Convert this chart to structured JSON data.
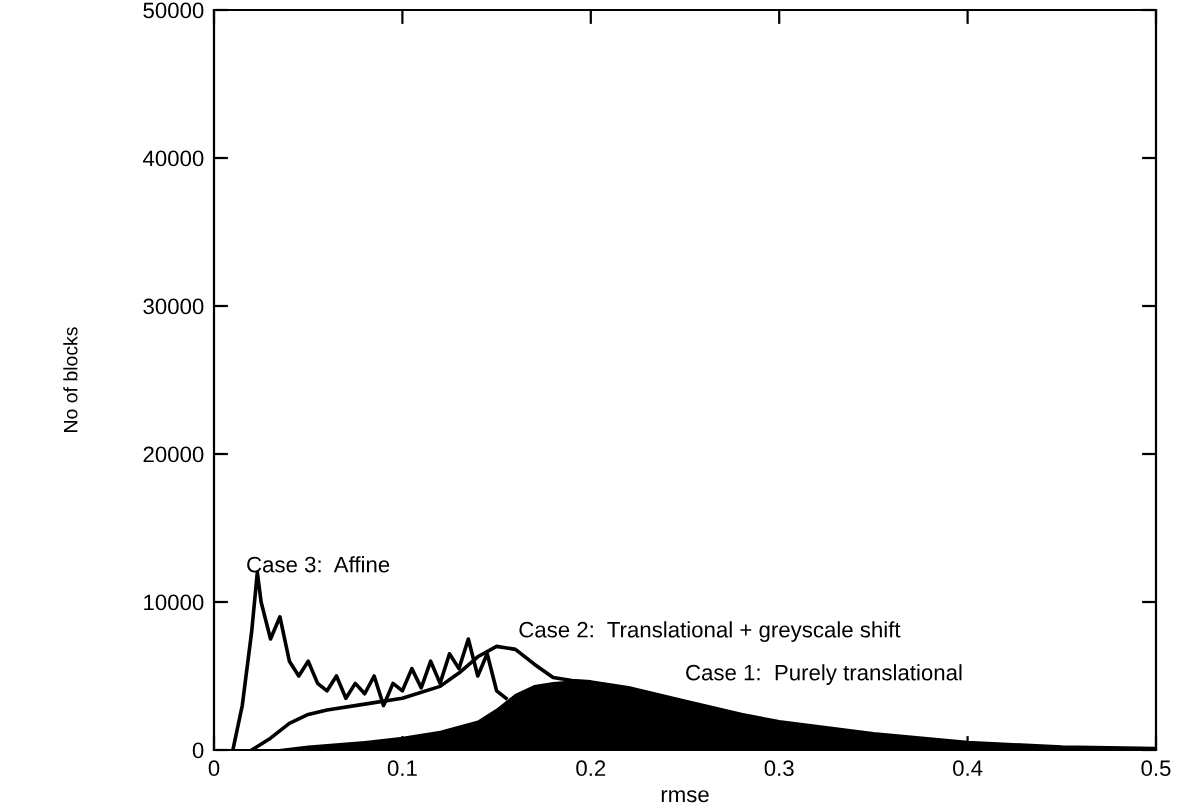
{
  "chart_data": {
    "type": "area",
    "xlabel": "rmse",
    "ylabel": "No of blocks",
    "xlim": [
      0,
      0.5
    ],
    "ylim": [
      0,
      50000
    ],
    "xticks": [
      0,
      0.1,
      0.2,
      0.3,
      0.4,
      0.5
    ],
    "yticks": [
      0,
      10000,
      20000,
      30000,
      40000,
      50000
    ],
    "grid": false,
    "legend": false,
    "series": [
      {
        "color": "#000000",
        "x": [
          0.03,
          0.05,
          0.08,
          0.1,
          0.12,
          0.14,
          0.15,
          0.16,
          0.17,
          0.18,
          0.19,
          0.2,
          0.22,
          0.25,
          0.28,
          0.3,
          0.35,
          0.4,
          0.45,
          0.5
        ],
        "values": [
          0,
          300,
          600,
          900,
          1300,
          2000,
          2800,
          3800,
          4400,
          4600,
          4700,
          4600,
          4200,
          3300,
          2400,
          1900,
          1100,
          500,
          200,
          100
        ]
      },
      {
        "type": "line",
        "color": "#000000",
        "x": [
          0.02,
          0.03,
          0.04,
          0.05,
          0.06,
          0.08,
          0.1,
          0.12,
          0.13,
          0.14,
          0.15,
          0.16,
          0.17,
          0.18,
          0.19,
          0.2,
          0.22,
          0.25,
          0.28,
          0.3,
          0.35,
          0.4,
          0.45,
          0.5
        ],
        "values": [
          0,
          800,
          1800,
          2400,
          2700,
          3100,
          3500,
          4300,
          5200,
          6300,
          7000,
          6800,
          5800,
          4900,
          4700,
          4600,
          4200,
          3300,
          2400,
          1900,
          1100,
          500,
          200,
          100
        ]
      },
      {
        "type": "line",
        "color": "#000000",
        "x": [
          0.01,
          0.015,
          0.02,
          0.023,
          0.025,
          0.03,
          0.035,
          0.04,
          0.045,
          0.05,
          0.055,
          0.06,
          0.065,
          0.07,
          0.075,
          0.08,
          0.085,
          0.09,
          0.095,
          0.1,
          0.105,
          0.11,
          0.115,
          0.12,
          0.125,
          0.13,
          0.135,
          0.14,
          0.145,
          0.15,
          0.155
        ],
        "values": [
          0,
          3000,
          8000,
          12000,
          10000,
          7500,
          9000,
          6000,
          5000,
          6000,
          4500,
          4000,
          5000,
          3500,
          4500,
          3800,
          5000,
          3000,
          4500,
          4000,
          5500,
          4200,
          6000,
          4500,
          6500,
          5500,
          7500,
          5000,
          6500,
          4000,
          3500
        ]
      }
    ],
    "annotations": [
      "Case 3:  Affine",
      "Case 2:  Translational + greyscale shift",
      "Case 1:  Purely translational"
    ]
  }
}
